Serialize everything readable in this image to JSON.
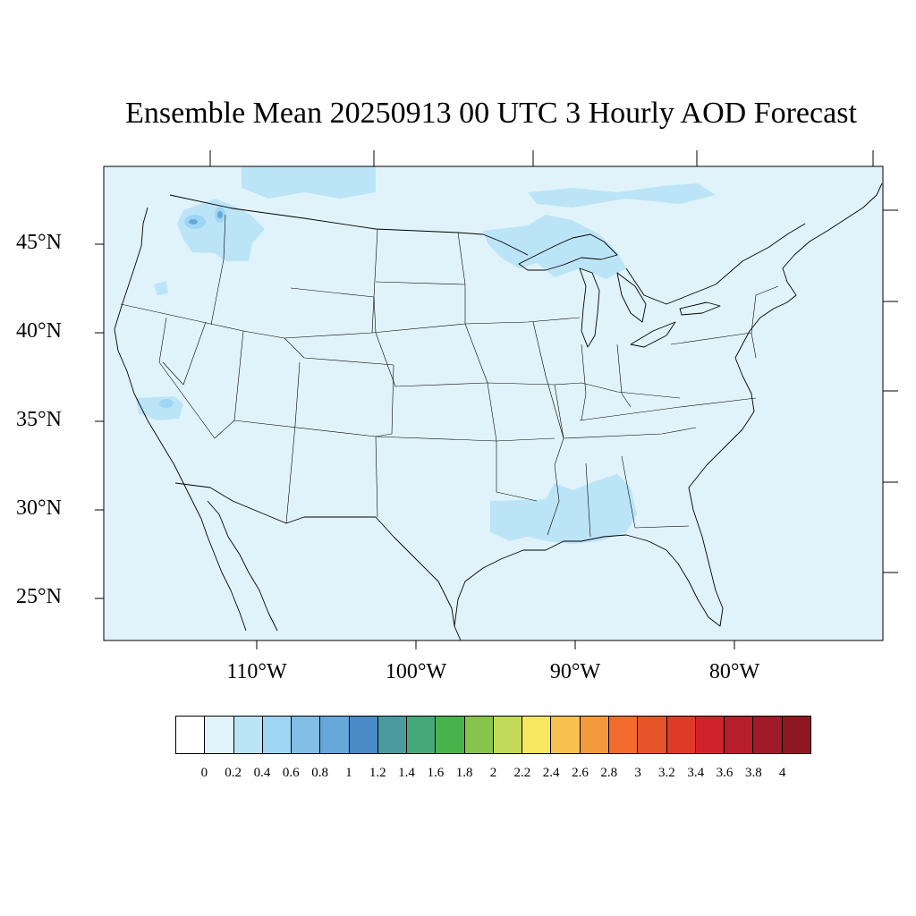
{
  "title": "Ensemble Mean 20250913 00 UTC 3 Hourly AOD Forecast",
  "lat_labels": [
    "45°N",
    "40°N",
    "35°N",
    "30°N",
    "25°N"
  ],
  "lon_labels": [
    "110°W",
    "100°W",
    "90°W",
    "80°W"
  ],
  "colorbar": {
    "colors": [
      "#ffffff",
      "#e0f3fb",
      "#bce4f7",
      "#9ed6f3",
      "#82bde6",
      "#67a7d9",
      "#4a8ac7",
      "#4a9b9e",
      "#46a879",
      "#48b34b",
      "#86c44d",
      "#c2d95a",
      "#f6e660",
      "#f6c14f",
      "#f49a3e",
      "#f26c2d",
      "#e7542a",
      "#e03b2a",
      "#d1232c",
      "#b71d2a",
      "#a01b27",
      "#8e1620"
    ],
    "tick_labels": [
      "0",
      "0.2",
      "0.4",
      "0.6",
      "0.8",
      "1",
      "1.2",
      "1.4",
      "1.6",
      "1.8",
      "2",
      "2.2",
      "2.4",
      "2.6",
      "2.8",
      "3",
      "3.2",
      "3.4",
      "3.6",
      "3.8",
      "4"
    ]
  },
  "field": {
    "background_level": "0-0.2",
    "background_color": "#e0f3fb",
    "elevated_regions": [
      {
        "name": "Washington/Idaho",
        "level": "0.2-0.8"
      },
      {
        "name": "Southern California",
        "level": "0.2-0.6"
      },
      {
        "name": "Gulf Coast",
        "level": "0.2-0.4"
      },
      {
        "name": "Lake Superior",
        "level": "0.2-0.4"
      },
      {
        "name": "Southern Canada",
        "level": "0.2-0.4"
      }
    ]
  }
}
